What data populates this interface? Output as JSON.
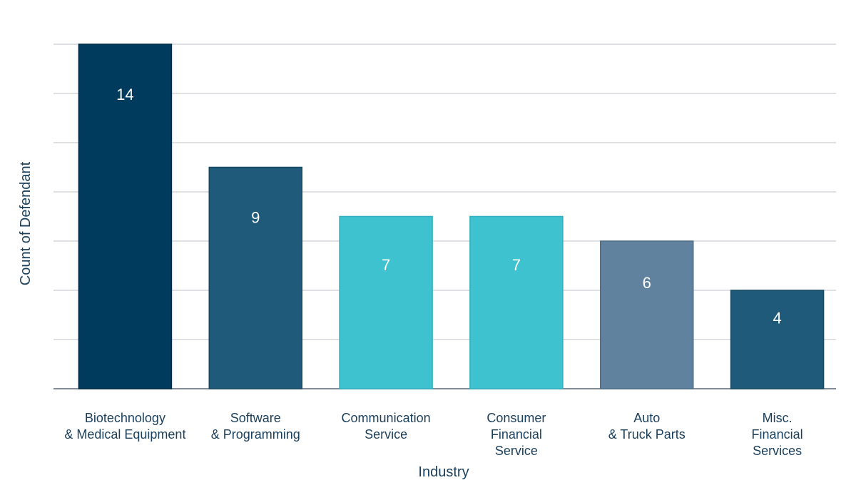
{
  "chart_data": {
    "type": "bar",
    "title": "",
    "xlabel": "Industry",
    "ylabel": "Count of Defendant",
    "ylim": [
      0,
      14
    ],
    "grid": true,
    "show_y_tick_labels": false,
    "categories": [
      "Biotechnology & Medical Equipment",
      "Software & Programming",
      "Communication Service",
      "Consumer Financial Service",
      "Auto & Truck Parts",
      "Misc. Financial Services"
    ],
    "category_label_lines": [
      [
        "Biotechnology",
        "& Medical Equipment"
      ],
      [
        "Software",
        "& Programming"
      ],
      [
        "Communication",
        "Service"
      ],
      [
        "Consumer",
        "Financial",
        "Service"
      ],
      [
        "Auto",
        "& Truck Parts"
      ],
      [
        "Misc.",
        "Financial",
        "Services"
      ]
    ],
    "values": [
      14,
      9,
      7,
      7,
      6,
      4
    ],
    "value_labels": [
      "14",
      "9",
      "7",
      "7",
      "6",
      "4"
    ],
    "bar_colors": [
      "#003a5d",
      "#205a7a",
      "#3fc2cf",
      "#3fc2cf",
      "#61829e",
      "#205a7a"
    ],
    "bar_edge_colors": [
      "#002a45",
      "#174862",
      "#2fb0be",
      "#2fb0be",
      "#4e6e88",
      "#174862"
    ]
  }
}
